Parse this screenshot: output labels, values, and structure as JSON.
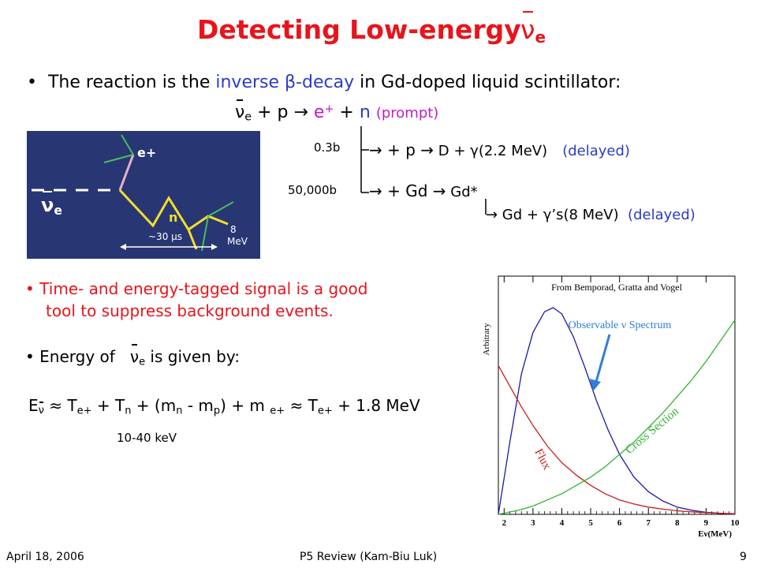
{
  "title": {
    "text": "Detecting Low-energy",
    "nu": "ν",
    "nu_sub": "e"
  },
  "bullet1": {
    "pre": "The reaction is the ",
    "highlight": "inverse β-decay",
    "post": " in Gd-doped liquid scintillator:"
  },
  "reaction": {
    "nu": "ν",
    "nu_sub": "e",
    "plus1": " + p ",
    "arrow": "→",
    "positron": " e",
    "positron_sup": "+",
    "plus_n": " + ",
    "n": "n",
    "prompt": "(prompt)"
  },
  "branch1": {
    "xs": "0.3b",
    "text_a": "→ + p ",
    "arrow": "→",
    "text_b": " D + γ(2.2 MeV)",
    "delayed": "(delayed)"
  },
  "branch2": {
    "xs": "50,000b",
    "text_a": "→ + Gd ",
    "arrow": "→",
    "text_b": " Gd*"
  },
  "branch3": {
    "text": "→ Gd + γ’s(8 MeV)",
    "delayed": "(delayed)"
  },
  "detector_image": {
    "e_plus": "e+",
    "nu": "ν",
    "nu_sub": "e",
    "n": "n",
    "time": "~30 μs",
    "energy_top": "8",
    "energy_bottom": "MeV"
  },
  "bullet2": {
    "line1": "Time- and energy-tagged signal is a good",
    "line2": "tool to suppress background events."
  },
  "bullet3": {
    "pre": "Energy of ",
    "nu": "ν",
    "nu_sub": "e",
    "post": " is given by:"
  },
  "formula": {
    "e": "E",
    "e_sub": "ν",
    "approx1": " ≈ T",
    "te_sub": "e+",
    "tn": " + T",
    "tn_sub": "n",
    "mass1": " + (m",
    "mn_sub": "n",
    "mass2": " - m",
    "mp_sub": "p",
    "mass3": ") + m ",
    "me_sub": "e+",
    "approx2": " ≈ T",
    "te2_sub": "e+",
    "end": " + 1.8 MeV"
  },
  "kev_note": "10-40 keV",
  "chart_data": {
    "type": "line",
    "title": "From Bemporad, Gratta and Vogel",
    "ylabel": "Arbitrary",
    "xlabel": "Eν(MeV)",
    "xlim": [
      1.8,
      10
    ],
    "x_ticks": [
      "2",
      "3",
      "4",
      "5",
      "6",
      "7",
      "8",
      "9",
      "10"
    ],
    "grid": false,
    "series": [
      {
        "name": "Observable ν Spectrum",
        "color": "#1a1aa6",
        "x": [
          1.8,
          2.2,
          2.6,
          3.0,
          3.4,
          3.7,
          4.0,
          4.4,
          4.8,
          5.2,
          5.6,
          6.0,
          6.5,
          7.0,
          7.5,
          8.0,
          8.5,
          9.0,
          9.5,
          10.0
        ],
        "y": [
          0.0,
          0.35,
          0.68,
          0.88,
          0.98,
          1.0,
          0.97,
          0.86,
          0.71,
          0.55,
          0.41,
          0.29,
          0.18,
          0.11,
          0.065,
          0.035,
          0.02,
          0.01,
          0.005,
          0.0
        ]
      },
      {
        "name": "Flux",
        "color": "#c81c1c",
        "x": [
          1.8,
          2.2,
          2.6,
          3.0,
          3.5,
          4.0,
          4.5,
          5.0,
          5.5,
          6.0,
          6.5,
          7.0,
          7.5,
          8.0,
          8.5,
          9.0,
          9.5,
          10.0
        ],
        "y": [
          0.72,
          0.62,
          0.52,
          0.43,
          0.33,
          0.25,
          0.19,
          0.14,
          0.1,
          0.07,
          0.05,
          0.035,
          0.025,
          0.017,
          0.012,
          0.008,
          0.005,
          0.003
        ]
      },
      {
        "name": "Cross Section",
        "color": "#2fb52f",
        "x": [
          1.8,
          2.5,
          3.0,
          3.5,
          4.0,
          4.5,
          5.0,
          5.5,
          6.0,
          6.5,
          7.0,
          7.5,
          8.0,
          8.5,
          9.0,
          9.5,
          10.0
        ],
        "y": [
          0.0,
          0.02,
          0.04,
          0.07,
          0.1,
          0.14,
          0.18,
          0.23,
          0.29,
          0.35,
          0.42,
          0.49,
          0.57,
          0.65,
          0.74,
          0.84,
          0.94
        ]
      }
    ],
    "annotations": [
      "Observable ν Spectrum",
      "Flux",
      "Cross Section"
    ]
  },
  "footer": {
    "date": "April 18, 2006",
    "center": "P5 Review (Kam-Biu Luk)",
    "page": "9"
  }
}
